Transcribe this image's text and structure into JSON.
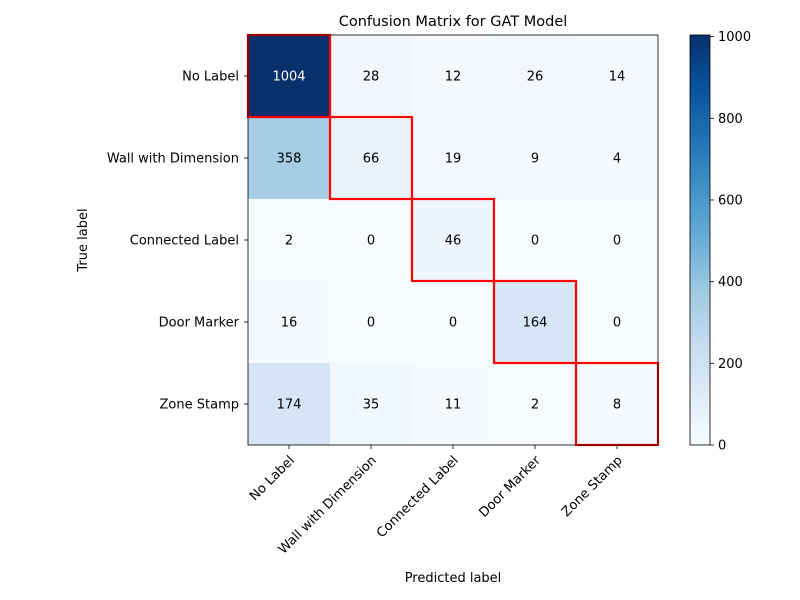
{
  "chart_data": {
    "type": "heatmap",
    "title": "Confusion Matrix for GAT Model",
    "xlabel": "Predicted label",
    "ylabel": "True label",
    "x_categories": [
      "No Label",
      "Wall with Dimension",
      "Connected Label",
      "Door Marker",
      "Zone Stamp"
    ],
    "y_categories": [
      "No Label",
      "Wall with Dimension",
      "Connected Label",
      "Door Marker",
      "Zone Stamp"
    ],
    "values": [
      [
        1004,
        28,
        12,
        26,
        14
      ],
      [
        358,
        66,
        19,
        9,
        4
      ],
      [
        2,
        0,
        46,
        0,
        0
      ],
      [
        16,
        0,
        0,
        164,
        0
      ],
      [
        174,
        35,
        11,
        2,
        8
      ]
    ],
    "colormap": "Blues",
    "color_range": [
      0,
      1004
    ],
    "colorbar_ticks": [
      0,
      200,
      400,
      600,
      800,
      1000
    ],
    "highlight": "diagonal",
    "highlight_color": "#ff0000"
  }
}
